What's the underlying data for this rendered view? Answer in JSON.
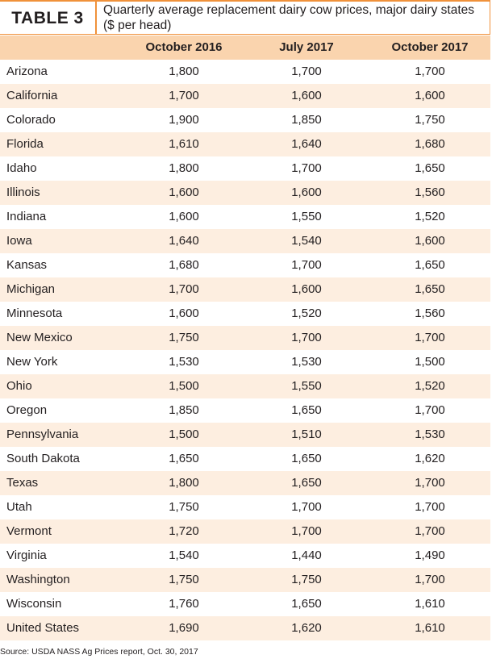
{
  "header": {
    "label": "TABLE 3",
    "title": "Quarterly average replacement dairy cow prices, major dairy states ($ per head)"
  },
  "table": {
    "columns": [
      "October 2016",
      "July 2017",
      "October 2017"
    ],
    "rows": [
      [
        "Arizona",
        "1,800",
        "1,700",
        "1,700"
      ],
      [
        "California",
        "1,700",
        "1,600",
        "1,600"
      ],
      [
        "Colorado",
        "1,900",
        "1,850",
        "1,750"
      ],
      [
        "Florida",
        "1,610",
        "1,640",
        "1,680"
      ],
      [
        "Idaho",
        "1,800",
        "1,700",
        "1,650"
      ],
      [
        "Illinois",
        "1,600",
        "1,600",
        "1,560"
      ],
      [
        "Indiana",
        "1,600",
        "1,550",
        "1,520"
      ],
      [
        "Iowa",
        "1,640",
        "1,540",
        "1,600"
      ],
      [
        "Kansas",
        "1,680",
        "1,700",
        "1,650"
      ],
      [
        "Michigan",
        "1,700",
        "1,600",
        "1,650"
      ],
      [
        "Minnesota",
        "1,600",
        "1,520",
        "1,560"
      ],
      [
        "New Mexico",
        "1,750",
        "1,700",
        "1,700"
      ],
      [
        "New York",
        "1,530",
        "1,530",
        "1,500"
      ],
      [
        "Ohio",
        "1,500",
        "1,550",
        "1,520"
      ],
      [
        "Oregon",
        "1,850",
        "1,650",
        "1,700"
      ],
      [
        "Pennsylvania",
        "1,500",
        "1,510",
        "1,530"
      ],
      [
        "South Dakota",
        "1,650",
        "1,650",
        "1,620"
      ],
      [
        "Texas",
        "1,800",
        "1,650",
        "1,700"
      ],
      [
        "Utah",
        "1,750",
        "1,700",
        "1,700"
      ],
      [
        "Vermont",
        "1,720",
        "1,700",
        "1,700"
      ],
      [
        "Virginia",
        "1,540",
        "1,440",
        "1,490"
      ],
      [
        "Washington",
        "1,750",
        "1,750",
        "1,700"
      ],
      [
        "Wisconsin",
        "1,760",
        "1,650",
        "1,610"
      ],
      [
        "United States",
        "1,690",
        "1,620",
        "1,610"
      ]
    ]
  },
  "source": "Source: USDA NASS Ag Prices report, Oct. 30, 2017"
}
